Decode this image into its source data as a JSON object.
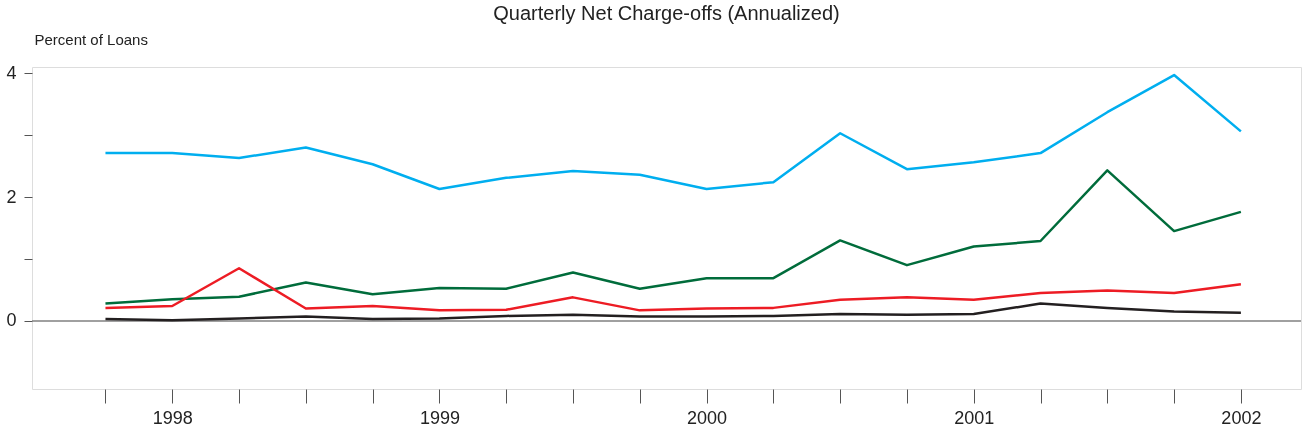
{
  "chart_data": {
    "type": "line",
    "title": "Quarterly Net Charge-offs (Annualized)",
    "ylabel": "Percent of Loans",
    "categories": [
      null,
      "1998",
      null,
      null,
      null,
      "1999",
      null,
      null,
      null,
      "2000",
      null,
      null,
      null,
      "2001",
      null,
      null,
      null,
      "2002"
    ],
    "series": [
      {
        "color": "#00aeef",
        "values": [
          2.71,
          2.71,
          2.63,
          2.8,
          2.53,
          2.13,
          2.31,
          2.42,
          2.36,
          2.13,
          2.24,
          3.03,
          2.45,
          2.56,
          2.71,
          3.37,
          3.97,
          3.06
        ]
      },
      {
        "color": "#006c3b",
        "values": [
          0.28,
          0.35,
          0.39,
          0.62,
          0.43,
          0.53,
          0.52,
          0.78,
          0.52,
          0.69,
          0.69,
          1.3,
          0.9,
          1.2,
          1.29,
          2.43,
          1.45,
          1.76
        ]
      },
      {
        "color": "#ed1c24",
        "values": [
          0.21,
          0.24,
          0.85,
          0.2,
          0.24,
          0.17,
          0.18,
          0.38,
          0.17,
          0.2,
          0.21,
          0.34,
          0.38,
          0.34,
          0.45,
          0.49,
          0.45,
          0.59
        ]
      },
      {
        "color": "#231f20",
        "values": [
          0.03,
          0.01,
          0.04,
          0.07,
          0.03,
          0.04,
          0.08,
          0.1,
          0.07,
          0.07,
          0.08,
          0.11,
          0.1,
          0.11,
          0.28,
          0.21,
          0.15,
          0.13
        ]
      }
    ],
    "ylim": [
      -1.1,
      4.1
    ],
    "yticks": [
      4,
      {
        "value": 3,
        "label": null
      },
      2,
      {
        "value": 1,
        "label": null
      },
      0
    ],
    "ref_lines": [
      {
        "axis": "y",
        "value": 0,
        "color": "#808080"
      }
    ],
    "grid": false,
    "legend": false,
    "line_style": "solid",
    "marker": "none"
  }
}
